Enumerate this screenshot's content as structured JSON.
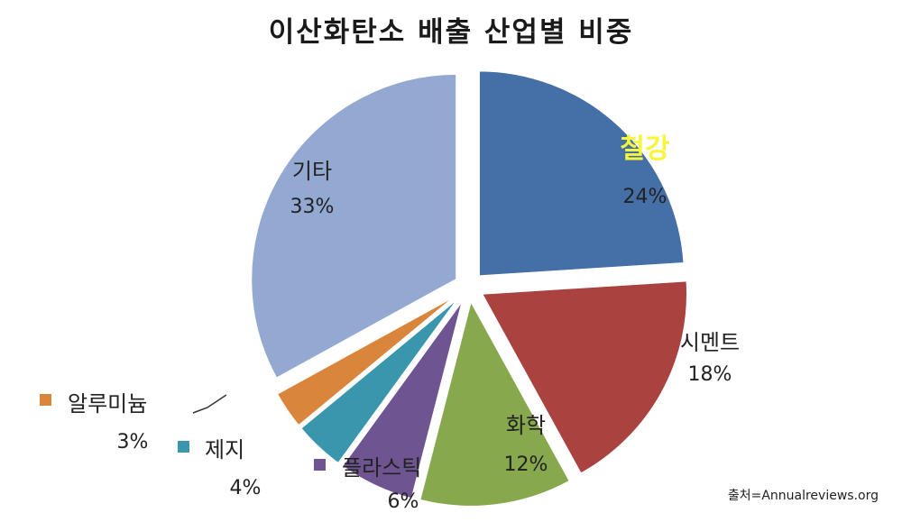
{
  "chart_data": {
    "type": "pie",
    "title": "이산화탄소 배출 산업별 비중",
    "slices": [
      {
        "label": "철강",
        "value": 24,
        "pct": "24%",
        "color": "#4570a7"
      },
      {
        "label": "시멘트",
        "value": 18,
        "pct": "18%",
        "color": "#aa4240"
      },
      {
        "label": "화학",
        "value": 12,
        "pct": "12%",
        "color": "#87a84d"
      },
      {
        "label": "플라스틱",
        "value": 6,
        "pct": "6%",
        "color": "#6e5592"
      },
      {
        "label": "제지",
        "value": 4,
        "pct": "4%",
        "color": "#3a96ad"
      },
      {
        "label": "알루미늄",
        "value": 3,
        "pct": "3%",
        "color": "#d9853b"
      },
      {
        "label": "기타",
        "value": 33,
        "pct": "33%",
        "color": "#93a9d2"
      }
    ],
    "highlight_label_color": "#f5f53c"
  },
  "source": "출처=Annualreviews.org"
}
